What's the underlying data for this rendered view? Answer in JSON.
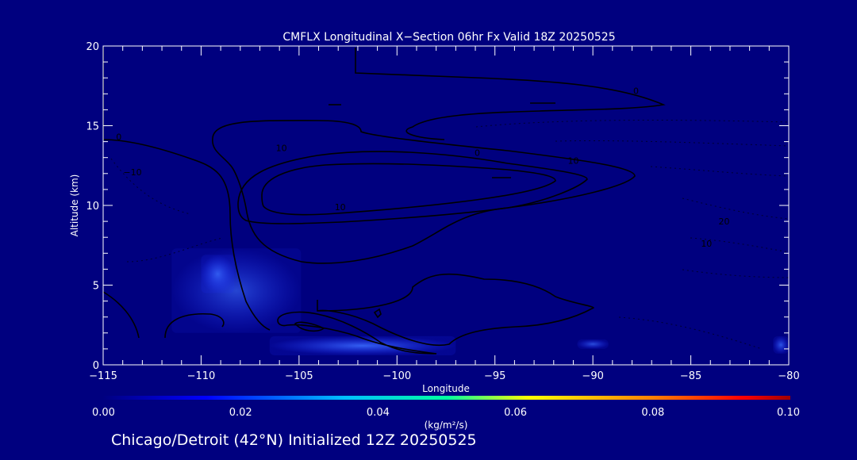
{
  "colors": {
    "background": "#00007f",
    "axes": "#ffffff",
    "contour": "#000000",
    "colorbar": [
      "#000080",
      "#0000ff",
      "#00bfff",
      "#00ffa0",
      "#ffff00",
      "#ff8000",
      "#ff0000",
      "#a00000"
    ]
  },
  "chart_data": {
    "type": "heatmap",
    "title": "CMFLX Longitudinal X−Section 06hr  Fx Valid 18Z 20250525",
    "xlabel": "Longitude",
    "ylabel": "Altitude (km)",
    "xlim": [
      -115,
      -80
    ],
    "ylim": [
      0,
      20
    ],
    "x_major_ticks": [
      -115,
      -110,
      -105,
      -100,
      -95,
      -90,
      -85,
      -80
    ],
    "x_tick_labels": [
      "−115",
      "−110",
      "−105",
      "−100",
      "−95",
      "−90",
      "−85",
      "−80"
    ],
    "y_major_ticks": [
      0,
      5,
      10,
      15,
      20
    ],
    "y_tick_labels": [
      "0",
      "5",
      "10",
      "15",
      "20"
    ],
    "grid": false,
    "colorbar": {
      "label": "(kg/m²/s)",
      "ticks": [
        0.0,
        0.02,
        0.04,
        0.06,
        0.08,
        0.1
      ],
      "tick_labels": [
        "0.00",
        "0.02",
        "0.04",
        "0.06",
        "0.08",
        "0.10"
      ],
      "range": [
        0,
        0.1
      ]
    },
    "field_regions": [
      {
        "xmin": -111.5,
        "xmax": -104.9,
        "ymin": 2.0,
        "ymax": 7.3,
        "value": 0.008
      },
      {
        "xmin": -110.0,
        "xmax": -108.3,
        "ymin": 4.5,
        "ymax": 6.9,
        "value": 0.012
      },
      {
        "xmin": -106.5,
        "xmax": -97.0,
        "ymin": 0.6,
        "ymax": 1.8,
        "value": 0.015
      },
      {
        "xmin": -90.8,
        "xmax": -89.2,
        "ymin": 1.0,
        "ymax": 1.6,
        "value": 0.01
      },
      {
        "xmin": -80.8,
        "xmax": -80.0,
        "ymin": 0.7,
        "ymax": 1.8,
        "value": 0.012
      }
    ],
    "contour_labels": [
      {
        "x": -114.2,
        "y": 14.3,
        "text": "0"
      },
      {
        "x": -95.9,
        "y": 13.3,
        "text": "0"
      },
      {
        "x": -87.8,
        "y": 17.2,
        "text": "0"
      },
      {
        "x": -105.9,
        "y": 13.6,
        "text": "10"
      },
      {
        "x": -102.9,
        "y": 9.9,
        "text": "10"
      },
      {
        "x": -91.0,
        "y": 12.8,
        "text": "10"
      },
      {
        "x": -113.5,
        "y": 12.1,
        "text": "−10"
      },
      {
        "x": -84.2,
        "y": 7.6,
        "text": "10"
      },
      {
        "x": -83.3,
        "y": 9.0,
        "text": "20"
      }
    ],
    "annotation": "Chicago/Detroit (42°N) Initialized 12Z 20250525"
  }
}
